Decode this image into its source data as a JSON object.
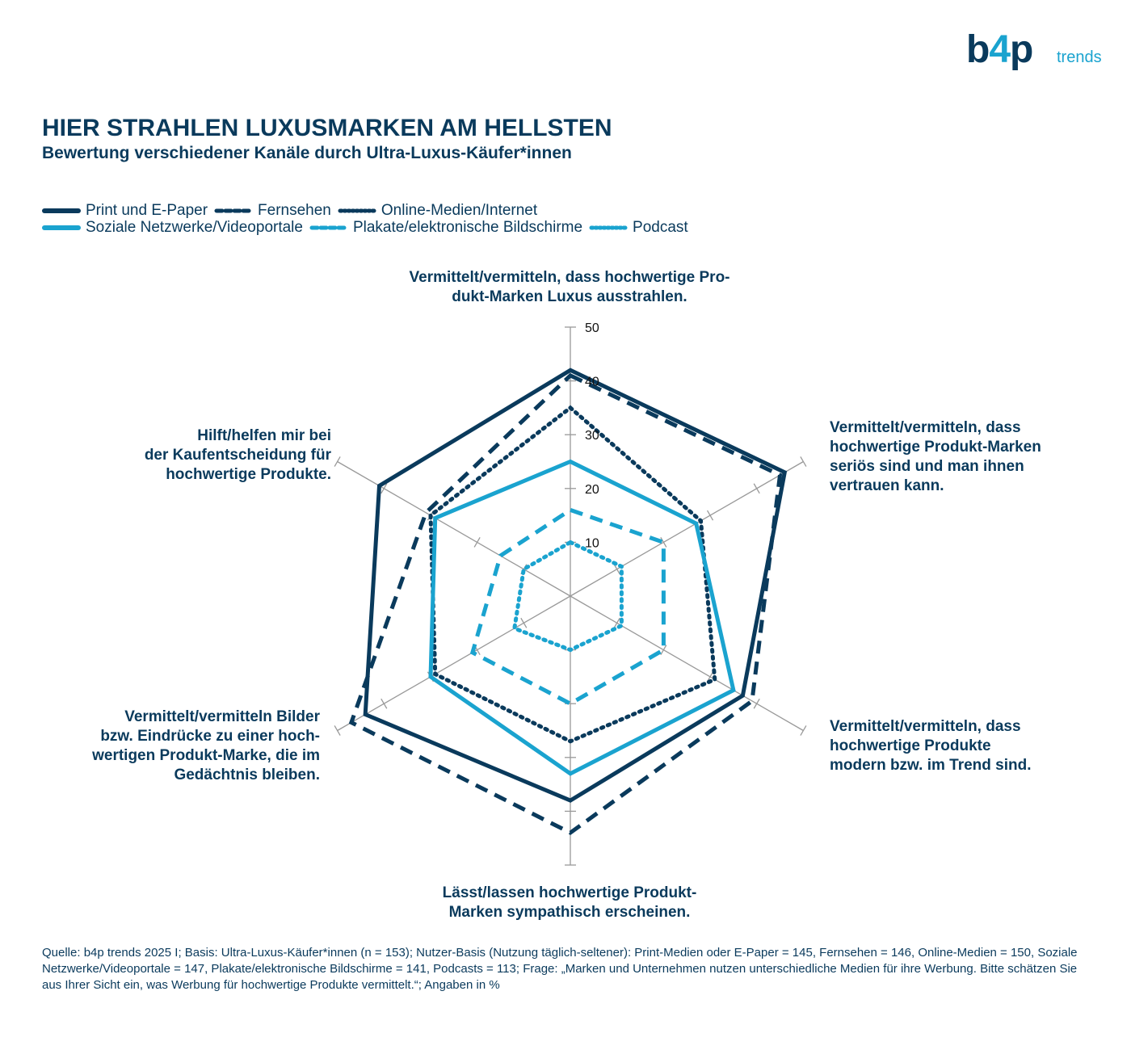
{
  "brand": {
    "main_left": "b",
    "main_mid": "4",
    "main_right": "p",
    "sub": "trends"
  },
  "title": "HIER STRAHLEN LUXUSMARKEN AM HELLSTEN",
  "subtitle": "Bewertung verschiedener Kanäle durch Ultra-Luxus-Käufer*innen",
  "colors": {
    "dark": "#0a3a5c",
    "light": "#1aa3cf",
    "axis": "#999999"
  },
  "chart_data": {
    "type": "radar",
    "axes": [
      "Vermittelt/vermitteln, dass hochwertige Produkt-Marken Luxus ausstrahlen.",
      "Vermittelt/vermitteln, dass hochwertige Produkt-Marken seriös sind und man ihnen vertrauen kann.",
      "Vermittelt/vermitteln, dass hochwertige Produkte modern bzw. im Trend sind.",
      "Lässt/lassen hochwertige Produkt-Marken sympathisch erscheinen.",
      "Vermittelt/vermitteln Bilder bzw. Eindrücke zu einer hochwertigen Produkt-Marke, die im Gedächtnis bleiben.",
      "Hilft/helfen mir bei der Kaufentscheidung für hochwertige Produkte."
    ],
    "axis_label_lines": [
      [
        "Vermittelt/vermitteln, dass hochwertige Pro-",
        "dukt-Marken Luxus ausstrahlen."
      ],
      [
        "Vermittelt/vermitteln, dass",
        "hochwertige Produkt-Marken",
        "seriös sind und man ihnen",
        "vertrauen kann."
      ],
      [
        "Vermittelt/vermitteln, dass",
        "hochwertige Produkte",
        "modern bzw. im Trend sind."
      ],
      [
        "Lässt/lassen hochwertige Produkt-",
        "Marken sympathisch erscheinen."
      ],
      [
        "Vermittelt/vermitteln Bilder",
        "bzw. Eindrücke zu einer hoch-",
        "wertigen Produkt-Marke, die im",
        "Gedächtnis bleiben."
      ],
      [
        "Hilft/helfen mir bei",
        "der Kaufentscheidung für",
        "hochwertige Produkte."
      ]
    ],
    "rlim": [
      0,
      50
    ],
    "ticks": [
      10,
      20,
      30,
      40,
      50
    ],
    "series": [
      {
        "name": "Print und E-Paper",
        "color": "#0a3a5c",
        "dash": "solid",
        "values": [
          42,
          46,
          37,
          38,
          44,
          41
        ]
      },
      {
        "name": "Fernsehen",
        "color": "#0a3a5c",
        "dash": "dashed",
        "values": [
          41,
          45,
          39,
          44,
          47,
          31
        ]
      },
      {
        "name": "Online-Medien/Internet",
        "color": "#0a3a5c",
        "dash": "dotted",
        "values": [
          35,
          28,
          31,
          27,
          29,
          30
        ]
      },
      {
        "name": "Soziale Netzwerke/Videoportale",
        "color": "#1aa3cf",
        "dash": "solid",
        "values": [
          25,
          27,
          35,
          33,
          30,
          29
        ]
      },
      {
        "name": "Plakate/elektronische Bildschirme",
        "color": "#1aa3cf",
        "dash": "dashed",
        "values": [
          16,
          20,
          20,
          20,
          21,
          15
        ]
      },
      {
        "name": "Podcast",
        "color": "#1aa3cf",
        "dash": "dotted",
        "values": [
          10,
          11,
          11,
          10,
          12,
          10
        ]
      }
    ]
  },
  "source": "Quelle: b4p trends 2025 I; Basis: Ultra-Luxus-Käufer*innen (n = 153); Nutzer-Basis (Nutzung täglich-seltener): Print-Medien oder E-Paper = 145, Fernsehen = 146, Online-Medien = 150, Soziale Netzwerke/Videoportale = 147, Plakate/elektronische Bildschirme = 141, Podcasts = 113; Frage: „Marken und Unternehmen nutzen unterschiedliche Medien für ihre Werbung. Bitte schätzen Sie aus Ihrer Sicht ein, was Werbung für hochwertige Produkte vermittelt.“; Angaben in %"
}
